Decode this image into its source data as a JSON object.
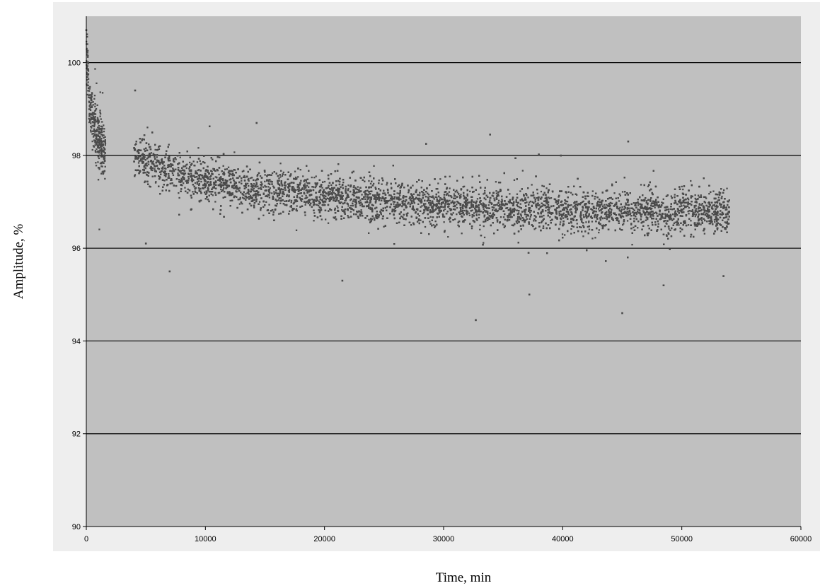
{
  "chart_data": {
    "type": "scatter",
    "title": "",
    "xlabel": "Time, min",
    "ylabel": "Amplitude, %",
    "xlim": [
      0,
      60000
    ],
    "ylim": [
      90,
      101
    ],
    "x_ticks": [
      "0",
      "10000",
      "20000",
      "30000",
      "40000",
      "50000",
      "60000"
    ],
    "y_ticks": [
      "90",
      "92",
      "94",
      "96",
      "98",
      "100"
    ],
    "grid": "horizontal",
    "legend": "none",
    "colors": {
      "plot_background": "#c0c0c0",
      "frame_background": "#eeeeee",
      "gridline": "#000000",
      "marker": "#4a4a4a"
    },
    "series": [
      {
        "segments": [
          {
            "x_start": 0,
            "x_end": 1600,
            "trend": [
              [
                0,
                100.2
              ],
              [
                300,
                99.0
              ],
              [
                800,
                98.5
              ],
              [
                1600,
                98.1
              ]
            ],
            "spread": 0.55
          },
          {
            "x_start": 4000,
            "x_end": 54000,
            "trend": [
              [
                4000,
                98.0
              ],
              [
                8000,
                97.55
              ],
              [
                15000,
                97.25
              ],
              [
                25000,
                97.0
              ],
              [
                35000,
                96.85
              ],
              [
                45000,
                96.8
              ],
              [
                54000,
                96.75
              ]
            ],
            "spread": 0.45
          }
        ],
        "sample_points": [
          {
            "x": 0,
            "y": 100.7
          },
          {
            "x": 4100,
            "y": 99.4
          },
          {
            "x": 5000,
            "y": 96.1
          },
          {
            "x": 7000,
            "y": 95.5
          },
          {
            "x": 14300,
            "y": 98.7
          },
          {
            "x": 21500,
            "y": 95.3
          },
          {
            "x": 32700,
            "y": 94.45
          },
          {
            "x": 33900,
            "y": 98.45
          },
          {
            "x": 37200,
            "y": 95.0
          },
          {
            "x": 45000,
            "y": 94.6
          },
          {
            "x": 45500,
            "y": 98.3
          },
          {
            "x": 53500,
            "y": 95.4
          }
        ]
      }
    ]
  }
}
